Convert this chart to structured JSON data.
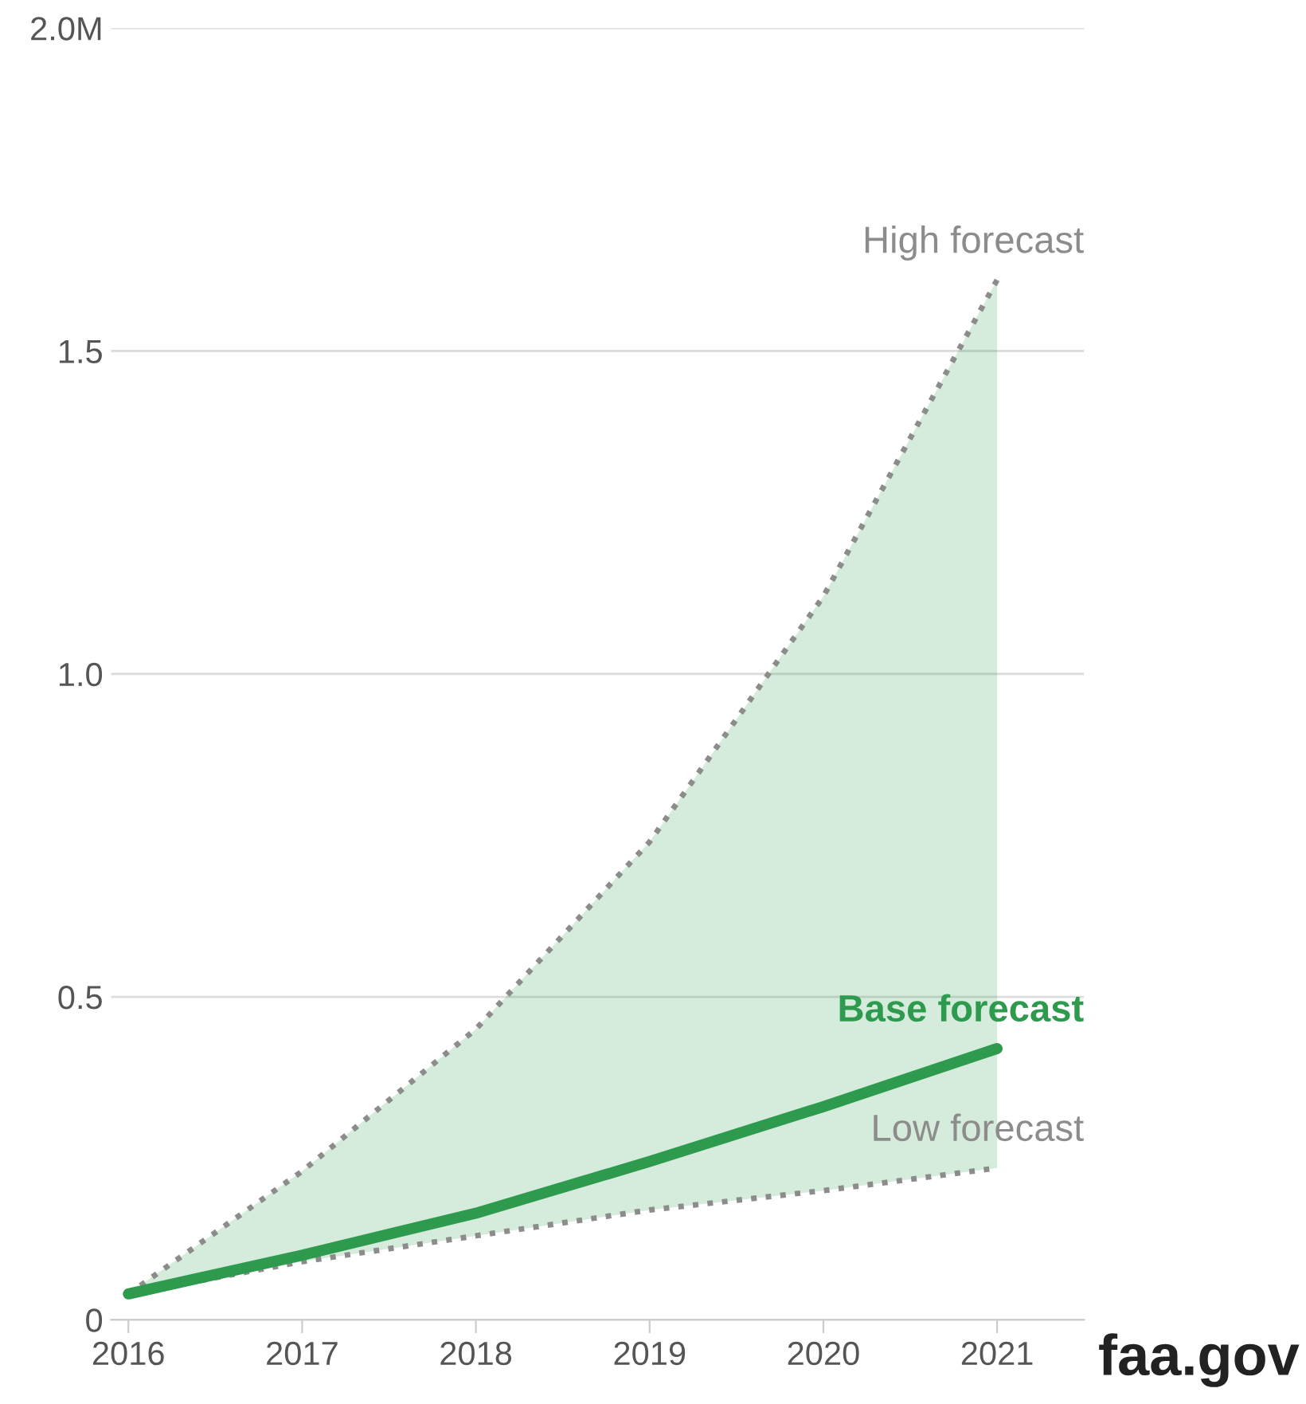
{
  "chart_data": {
    "type": "line",
    "x": [
      2016,
      2017,
      2018,
      2019,
      2020,
      2021
    ],
    "series": [
      {
        "name": "High forecast",
        "color": "#8c8c8c",
        "line_style": "dotted",
        "values": [
          0.04,
          0.23,
          0.45,
          0.74,
          1.12,
          1.61
        ]
      },
      {
        "name": "Low forecast",
        "color": "#8c8c8c",
        "line_style": "dotted",
        "values": [
          0.04,
          0.09,
          0.13,
          0.17,
          0.2,
          0.235
        ]
      },
      {
        "name": "Base forecast",
        "color": "#2e9a4e",
        "line_style": "solid",
        "values": [
          0.04,
          0.1,
          0.165,
          0.245,
          0.33,
          0.42
        ],
        "lower": [
          0.04,
          0.09,
          0.13,
          0.17,
          0.2,
          0.235
        ],
        "upper": [
          0.04,
          0.23,
          0.45,
          0.74,
          1.12,
          1.61
        ]
      }
    ],
    "xlim": [
      2015.9,
      2021.5
    ],
    "xticks": [
      2016,
      2017,
      2018,
      2019,
      2020,
      2021
    ],
    "ylim": [
      0,
      2.0
    ],
    "yticks": [
      0,
      0.5,
      {
        "value": 1.0,
        "label": "1.0"
      },
      1.5,
      {
        "value": 2.0,
        "label": "2.0M"
      }
    ],
    "grid": "y",
    "legend": false,
    "marker": "none",
    "annotations": [
      "faa.gov"
    ]
  }
}
